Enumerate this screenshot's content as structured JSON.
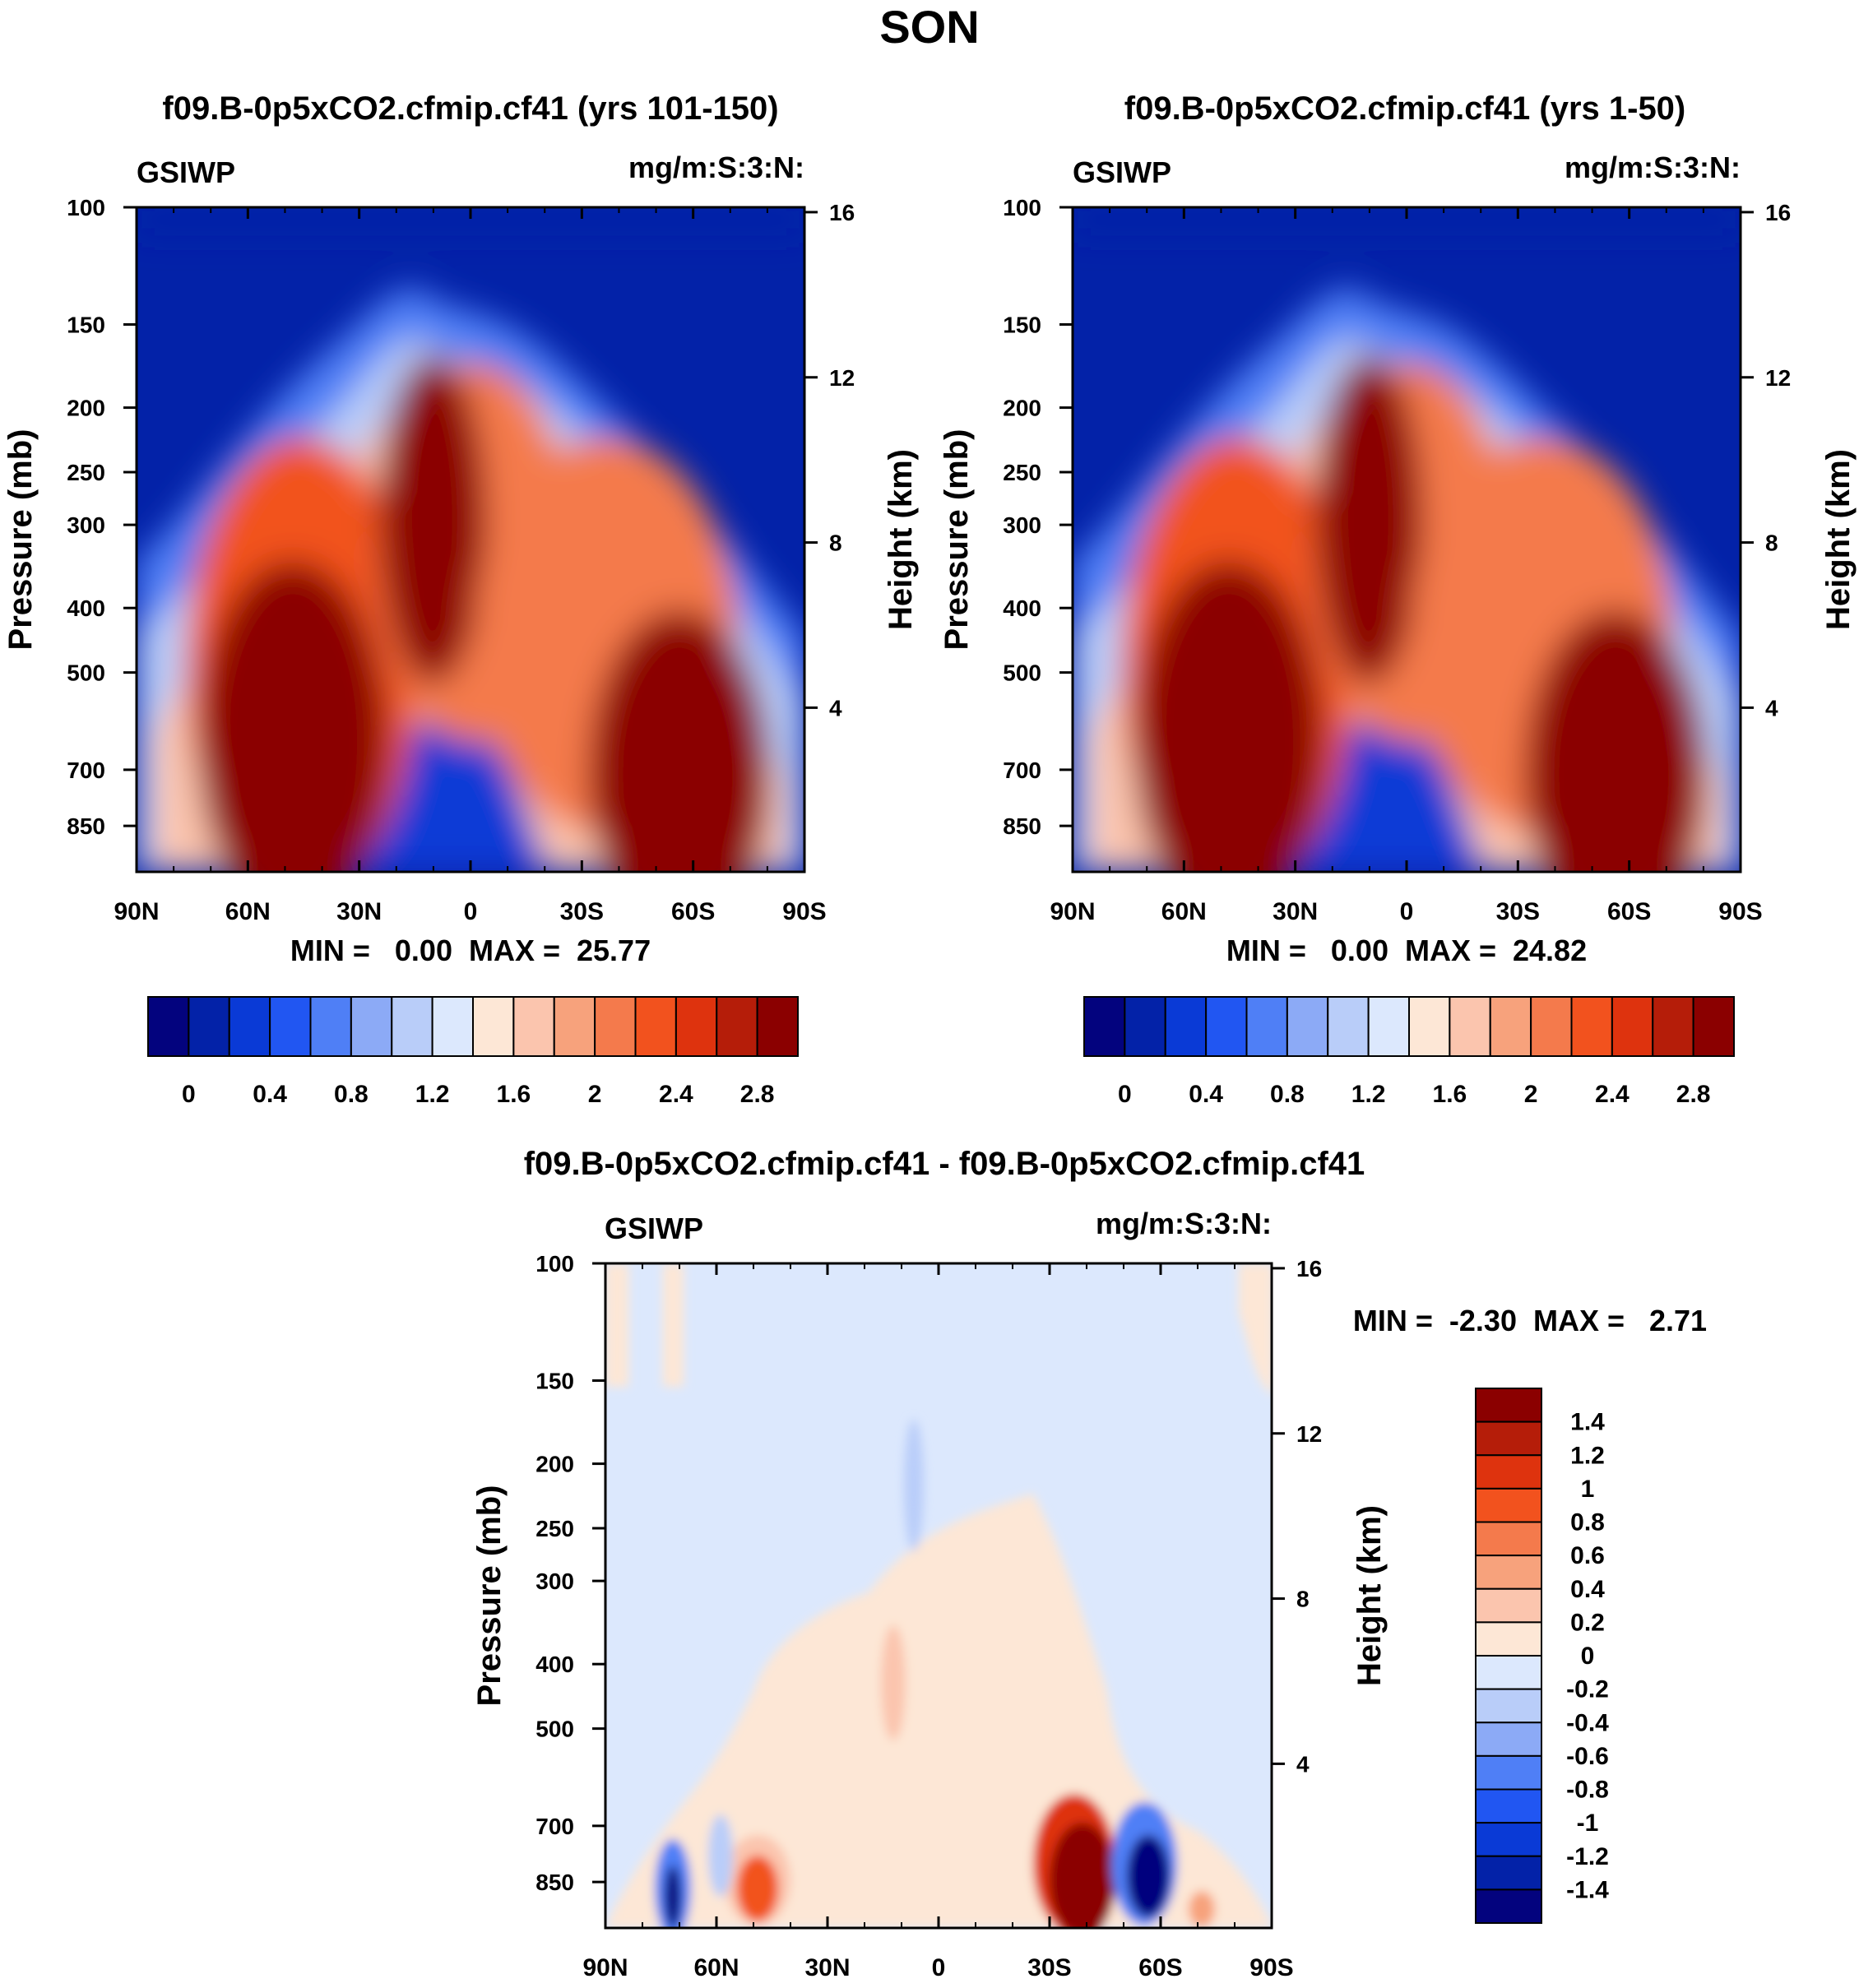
{
  "figure": {
    "title": "SON"
  },
  "colors": {
    "cmap_abs": [
      "#03037e",
      "#0322a8",
      "#0a3ad6",
      "#2156f2",
      "#4f7ff6",
      "#8caaf6",
      "#b9cdf9",
      "#dce8fd",
      "#fde7d6",
      "#fbc5ae",
      "#f7a27c",
      "#f47a4c",
      "#f2521e",
      "#de330e",
      "#b51d09",
      "#8b0000"
    ],
    "cmap_diff": [
      "#03037e",
      "#0322a8",
      "#0a3ad6",
      "#2156f2",
      "#4f7ff6",
      "#8caaf6",
      "#b9cdf9",
      "#dce8fd",
      "#fde7d6",
      "#fbc5ae",
      "#f7a27c",
      "#f47a4c",
      "#f2521e",
      "#de330e",
      "#b51d09",
      "#8b0000"
    ]
  },
  "chart_data": [
    {
      "id": "panel1",
      "type": "heatmap",
      "title": "f09.B-0p5xCO2.cfmip.cf41 (yrs 101-150)",
      "variable": "GSIWP",
      "units": "mg/m:S:3:N:",
      "xlabel": "",
      "ylabel": "Pressure (mb)",
      "y2label": "Height (km)",
      "x_ticks": [
        "90N",
        "60N",
        "30N",
        "0",
        "30S",
        "60S",
        "90S"
      ],
      "y_ticks": [
        100,
        150,
        200,
        250,
        300,
        400,
        500,
        700,
        850
      ],
      "y2_ticks": [
        16,
        12,
        8,
        4
      ],
      "ylim": [
        100,
        1000
      ],
      "stats": "MIN =   0.00  MAX =  25.77",
      "min": 0.0,
      "max": 25.77,
      "colorbar": {
        "orientation": "horizontal",
        "levels": [
          0,
          0.2,
          0.4,
          0.6,
          0.8,
          1.0,
          1.2,
          1.4,
          1.6,
          1.8,
          2.0,
          2.2,
          2.4,
          2.6,
          2.8
        ],
        "tick_labels": [
          "0",
          "0.4",
          "0.8",
          "1.2",
          "1.6",
          "2",
          "2.4",
          "2.8"
        ]
      }
    },
    {
      "id": "panel2",
      "type": "heatmap",
      "title": "f09.B-0p5xCO2.cfmip.cf41 (yrs 1-50)",
      "variable": "GSIWP",
      "units": "mg/m:S:3:N:",
      "xlabel": "",
      "ylabel": "Pressure (mb)",
      "y2label": "Height (km)",
      "x_ticks": [
        "90N",
        "60N",
        "30N",
        "0",
        "30S",
        "60S",
        "90S"
      ],
      "y_ticks": [
        100,
        150,
        200,
        250,
        300,
        400,
        500,
        700,
        850
      ],
      "y2_ticks": [
        16,
        12,
        8,
        4
      ],
      "ylim": [
        100,
        1000
      ],
      "stats": "MIN =   0.00  MAX =  24.82",
      "min": 0.0,
      "max": 24.82,
      "colorbar": {
        "orientation": "horizontal",
        "levels": [
          0,
          0.2,
          0.4,
          0.6,
          0.8,
          1.0,
          1.2,
          1.4,
          1.6,
          1.8,
          2.0,
          2.2,
          2.4,
          2.6,
          2.8
        ],
        "tick_labels": [
          "0",
          "0.4",
          "0.8",
          "1.2",
          "1.6",
          "2",
          "2.4",
          "2.8"
        ]
      }
    },
    {
      "id": "panel3",
      "type": "heatmap",
      "title": "f09.B-0p5xCO2.cfmip.cf41 - f09.B-0p5xCO2.cfmip.cf41",
      "variable": "GSIWP",
      "units": "mg/m:S:3:N:",
      "xlabel": "",
      "ylabel": "Pressure (mb)",
      "y2label": "Height (km)",
      "x_ticks": [
        "90N",
        "60N",
        "30N",
        "0",
        "30S",
        "60S",
        "90S"
      ],
      "y_ticks": [
        100,
        150,
        200,
        250,
        300,
        400,
        500,
        700,
        850
      ],
      "y2_ticks": [
        16,
        12,
        8,
        4
      ],
      "ylim": [
        100,
        1000
      ],
      "stats": "MIN =  -2.30  MAX =   2.71",
      "min": -2.3,
      "max": 2.71,
      "colorbar": {
        "orientation": "vertical",
        "levels": [
          -1.4,
          -1.2,
          -1.0,
          -0.8,
          -0.6,
          -0.4,
          -0.2,
          0,
          0.2,
          0.4,
          0.6,
          0.8,
          1.0,
          1.2,
          1.4
        ],
        "tick_labels": [
          "1.4",
          "1.2",
          "1",
          "0.8",
          "0.6",
          "0.4",
          "0.2",
          "0",
          "-0.2",
          "-0.4",
          "-0.6",
          "-0.8",
          "-1",
          "-1.2",
          "-1.4"
        ]
      }
    }
  ]
}
